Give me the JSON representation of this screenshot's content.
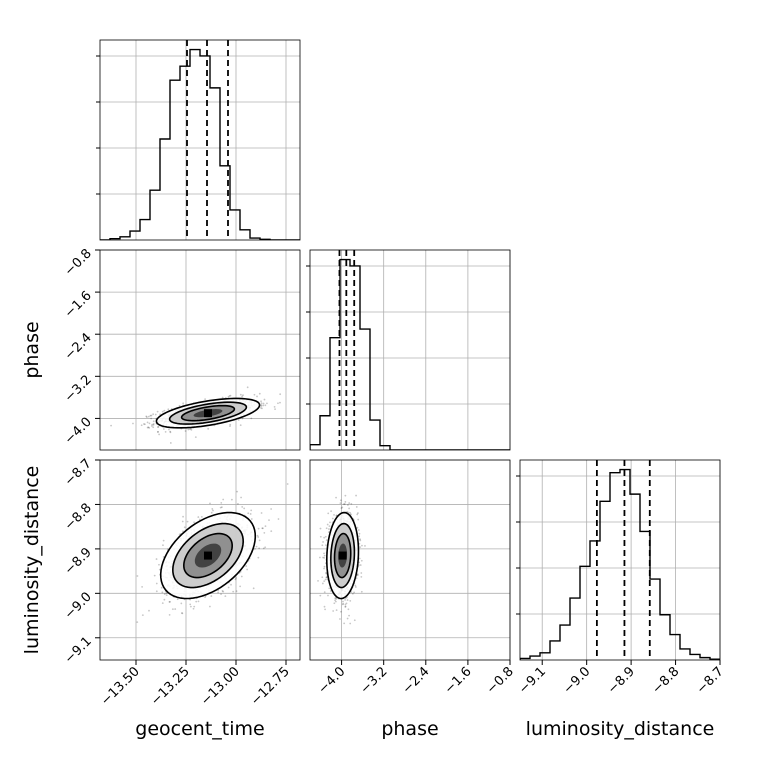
{
  "chart_data": {
    "type": "corner",
    "parameters": [
      {
        "key": "geocent_time",
        "label": "geocent_time",
        "range": [
          -13.68,
          -12.68
        ],
        "ticks": [
          -13.5,
          -13.25,
          -13.0,
          -12.75
        ],
        "tick_labels": [
          "−13.50",
          "−13.25",
          "−13.00",
          "−12.75"
        ],
        "quantiles": [
          -13.245,
          -13.145,
          -13.04
        ]
      },
      {
        "key": "phase",
        "label": "phase",
        "range": [
          -4.6,
          -0.8
        ],
        "ticks": [
          -4.0,
          -3.2,
          -2.4,
          -1.6,
          -0.8
        ],
        "tick_labels": [
          "−4.0",
          "−3.2",
          "−2.4",
          "−1.6",
          "−0.8"
        ],
        "quantiles": [
          -4.04,
          -3.91,
          -3.76
        ]
      },
      {
        "key": "luminosity_distance",
        "label": "luminosity_distance",
        "range": [
          -9.15,
          -8.7
        ],
        "ticks": [
          -9.1,
          -9.0,
          -8.9,
          -8.8,
          -8.7
        ],
        "tick_labels": [
          "−9.1",
          "−9.0",
          "−8.9",
          "−8.8",
          "−8.7"
        ],
        "quantiles": [
          -8.977,
          -8.915,
          -8.858
        ]
      }
    ],
    "histograms": [
      {
        "param": "geocent_time",
        "bin_start": -13.68,
        "bin_width": 0.05,
        "counts": [
          0,
          2,
          5,
          14,
          32,
          78,
          158,
          250,
          272,
          298,
          288,
          238,
          116,
          47,
          16,
          3,
          1,
          0,
          0,
          0
        ]
      },
      {
        "param": "phase",
        "bin_start": -4.6,
        "bin_width": 0.19,
        "counts": [
          5,
          32,
          105,
          178,
          172,
          113,
          28,
          4,
          0,
          0,
          0,
          0,
          0,
          0,
          0,
          0,
          0,
          0,
          0,
          0
        ]
      },
      {
        "param": "luminosity_distance",
        "bin_start": -9.15,
        "bin_width": 0.0225,
        "counts": [
          2,
          5,
          9,
          24,
          44,
          78,
          118,
          150,
          200,
          236,
          240,
          209,
          162,
          102,
          57,
          32,
          14,
          7,
          3,
          1
        ]
      }
    ],
    "joint": [
      {
        "x": "geocent_time",
        "y": "phase",
        "mean": [
          -13.14,
          -3.9
        ],
        "sd": [
          0.12,
          0.13
        ],
        "corr": 0.55,
        "contour_widths": [
          0.6,
          1.1,
          1.6,
          2.15
        ]
      },
      {
        "x": "geocent_time",
        "y": "luminosity_distance",
        "mean": [
          -13.14,
          -8.915
        ],
        "sd": [
          0.11,
          0.045
        ],
        "corr": 0.45,
        "contour_widths": [
          0.6,
          1.1,
          1.6,
          2.15
        ]
      },
      {
        "x": "phase",
        "y": "luminosity_distance",
        "mean": [
          -3.98,
          -8.915
        ],
        "sd": [
          0.14,
          0.045
        ],
        "corr": 0.1,
        "contour_widths": [
          0.6,
          1.1,
          1.6,
          2.15
        ]
      }
    ],
    "sample_count": 1200,
    "grid": true,
    "legend": "none"
  }
}
